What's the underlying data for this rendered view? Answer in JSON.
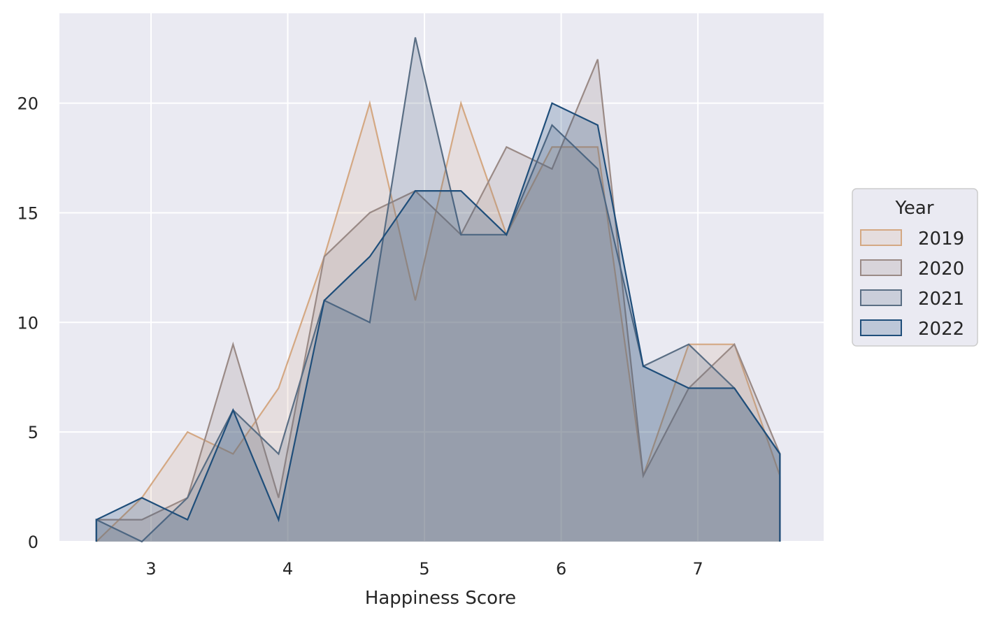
{
  "chart_data": {
    "type": "area",
    "xlabel": "Happiness Score",
    "ylabel": "",
    "xlim": [
      2.33,
      7.92
    ],
    "ylim": [
      0,
      24.1
    ],
    "xticks": [
      3,
      4,
      5,
      6,
      7
    ],
    "yticks": [
      0,
      5,
      10,
      15,
      20
    ],
    "grid": true,
    "x": [
      2.6,
      2.933,
      3.267,
      3.6,
      3.933,
      4.267,
      4.6,
      4.933,
      5.267,
      5.6,
      5.933,
      6.267,
      6.6,
      6.933,
      7.267,
      7.6
    ],
    "legend": {
      "title": "Year",
      "placement": "center-right"
    },
    "series": [
      {
        "name": "2019",
        "color": "#d4a883",
        "fill_opacity": 0.18,
        "values": [
          0,
          2,
          5,
          4,
          7,
          13,
          20,
          11,
          20,
          14,
          18,
          18,
          3,
          9,
          9,
          3
        ]
      },
      {
        "name": "2020",
        "color": "#9a8a86",
        "fill_opacity": 0.22,
        "values": [
          1,
          1,
          2,
          9,
          2,
          13,
          15,
          16,
          14,
          18,
          17,
          22,
          3,
          7,
          9,
          4
        ]
      },
      {
        "name": "2021",
        "color": "#5a6e84",
        "fill_opacity": 0.22,
        "values": [
          1,
          0,
          2,
          6,
          4,
          11,
          10,
          23,
          14,
          14,
          19,
          17,
          8,
          9,
          7,
          4
        ]
      },
      {
        "name": "2022",
        "color": "#1f4e7a",
        "fill_opacity": 0.22,
        "values": [
          1,
          2,
          1,
          6,
          1,
          11,
          13,
          16,
          16,
          14,
          20,
          19,
          8,
          7,
          7,
          4
        ]
      }
    ]
  }
}
